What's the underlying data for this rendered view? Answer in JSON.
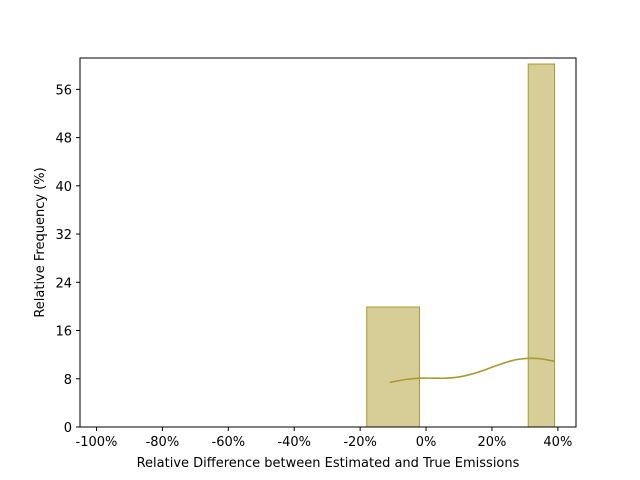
{
  "chart_data": {
    "type": "bar",
    "title": "",
    "xlabel": "Relative Difference between Estimated and True Emissions",
    "ylabel": "Relative Frequency (%)",
    "xlim": [
      -105,
      45.5
    ],
    "ylim": [
      0,
      61.2
    ],
    "x_ticks": [
      -100,
      -80,
      -60,
      -40,
      -20,
      0,
      20,
      40
    ],
    "x_tick_labels": [
      "-100%",
      "-80%",
      "-60%",
      "-40%",
      "-20%",
      "0%",
      "20%",
      "40%"
    ],
    "y_ticks": [
      0,
      8,
      16,
      24,
      32,
      40,
      48,
      56
    ],
    "y_tick_labels": [
      "0",
      "8",
      "16",
      "24",
      "32",
      "40",
      "48",
      "56"
    ],
    "bins": [
      {
        "x_start": -18,
        "x_end": -2,
        "value": 19.9
      },
      {
        "x_start": 31,
        "x_end": 39,
        "value": 60.2
      }
    ],
    "kde": {
      "x": [
        -11,
        -6,
        -2,
        2,
        6,
        10,
        14,
        18,
        22,
        26,
        29,
        32,
        35,
        37,
        39
      ],
      "y": [
        7.4,
        7.9,
        8.1,
        8.1,
        8.1,
        8.3,
        8.8,
        9.5,
        10.3,
        11.0,
        11.3,
        11.4,
        11.3,
        11.1,
        10.9
      ]
    },
    "grid": false,
    "colors": {
      "bar_fill": "#d6ce96",
      "bar_edge": "#a89a2d",
      "kde_line": "#a89a2d"
    }
  }
}
